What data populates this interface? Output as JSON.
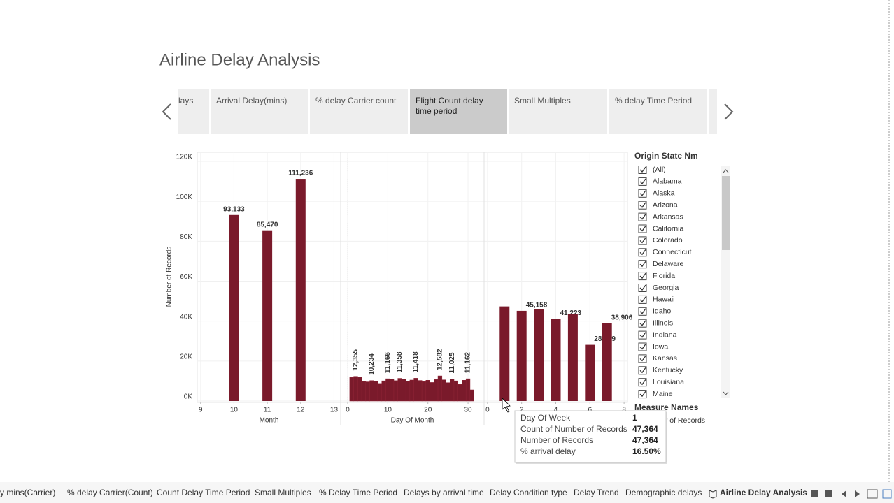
{
  "title": "Airline Delay Analysis",
  "story_tabs": [
    "lays",
    "Arrival Delay(mins)",
    "% delay Carrier count",
    "Flight Count delay time period",
    "Small Multiples",
    "% delay Time Period"
  ],
  "selected_story_tab": 3,
  "chart_data": {
    "type": "bar",
    "y_label": "Number of Records",
    "color": "#7a1a2b",
    "grid": true,
    "ylim": [
      0,
      120000
    ],
    "yticks": [
      {
        "value": 0,
        "label": "0K"
      },
      {
        "value": 20000,
        "label": "20K"
      },
      {
        "value": 40000,
        "label": "40K"
      },
      {
        "value": 60000,
        "label": "60K"
      },
      {
        "value": 80000,
        "label": "80K"
      },
      {
        "value": 100000,
        "label": "100K"
      },
      {
        "value": 120000,
        "label": "120K"
      }
    ],
    "panels": [
      {
        "x_label": "Month",
        "xlim": [
          8.9,
          13.2
        ],
        "xticks": [
          9,
          10,
          11,
          12,
          13
        ],
        "x": [
          10,
          11,
          12
        ],
        "values": [
          93133,
          85470,
          111236
        ],
        "value_labels": [
          "93,133",
          "85,470",
          "111,236"
        ]
      },
      {
        "x_label": "Day Of Month",
        "xlim": [
          -1.75,
          34
        ],
        "xticks": [
          0,
          10,
          20,
          30
        ],
        "x": [
          1,
          2,
          3,
          4,
          5,
          6,
          7,
          8,
          9,
          10,
          11,
          12,
          13,
          14,
          15,
          16,
          17,
          18,
          19,
          20,
          21,
          22,
          23,
          24,
          25,
          26,
          27,
          28,
          29,
          30,
          31
        ],
        "values": [
          11800,
          12355,
          11900,
          9800,
          9600,
          10234,
          9900,
          8800,
          10100,
          11166,
          11000,
          10200,
          11358,
          10900,
          10000,
          10500,
          11418,
          10300,
          9700,
          10400,
          9300,
          10800,
          12582,
          10600,
          9200,
          11025,
          10100,
          8300,
          10400,
          11162,
          5600
        ],
        "value_labels": [
          null,
          "12,355",
          null,
          null,
          null,
          "10,234",
          null,
          null,
          null,
          "11,166",
          null,
          null,
          "11,358",
          null,
          null,
          null,
          "11,418",
          null,
          null,
          null,
          null,
          null,
          "12,582",
          null,
          null,
          "11,025",
          null,
          null,
          null,
          "11,162",
          null
        ]
      },
      {
        "x_label": "Day Of Week",
        "xlim": [
          -0.2,
          8.2
        ],
        "xticks": [
          0,
          2,
          4,
          6,
          8
        ],
        "x": [
          1,
          2,
          3,
          4,
          5,
          6,
          7
        ],
        "values": [
          47364,
          45158,
          46000,
          41223,
          43500,
          28129,
          38906
        ],
        "value_labels": [
          null,
          "45,158",
          null,
          "41,223",
          null,
          "28,129",
          "38,906"
        ]
      }
    ]
  },
  "filter": {
    "title": "Origin State Nm",
    "items": [
      "(All)",
      "Alabama",
      "Alaska",
      "Arizona",
      "Arkansas",
      "California",
      "Colorado",
      "Connecticut",
      "Delaware",
      "Florida",
      "Georgia",
      "Hawaii",
      "Idaho",
      "Illinois",
      "Indiana",
      "Iowa",
      "Kansas",
      "Kentucky",
      "Louisiana",
      "Maine"
    ]
  },
  "legend": {
    "title": "Measure Names",
    "item": "Number of Records"
  },
  "tooltip": {
    "rows": [
      [
        "Day Of Week",
        "1"
      ],
      [
        "Count of Number of Records",
        "47,364"
      ],
      [
        "Number of Records",
        "47,364"
      ],
      [
        "% arrival delay",
        "16.50%"
      ]
    ]
  },
  "sheet_tabs": [
    "y mins(Carrier)",
    "% delay Carrier(Count)",
    "Count Delay Time Period",
    "Small Multiples",
    "% Delay Time Period",
    "Delays by arrival time",
    "Delay Condition type",
    "Delay Trend",
    "Demographic delays",
    "Airline Delay Analysis"
  ],
  "selected_sheet_tab": 9
}
